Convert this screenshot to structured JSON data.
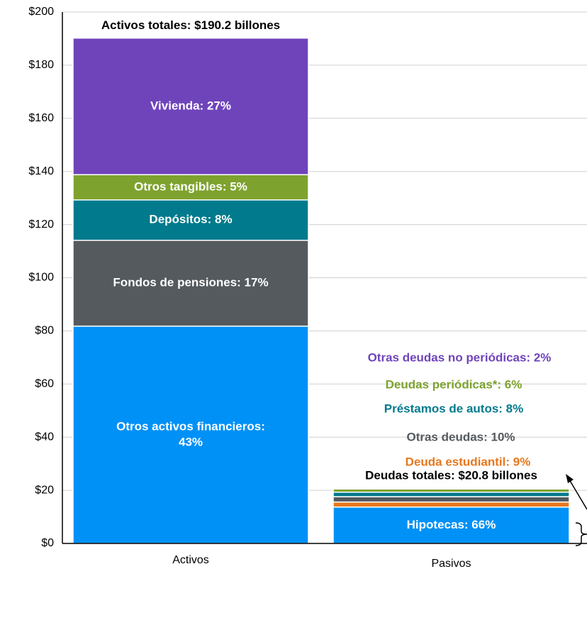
{
  "chart_data": {
    "type": "stacked_bar",
    "ylim": [
      0,
      200
    ],
    "yticks": [
      {
        "value": 0,
        "label": "$0"
      },
      {
        "value": 20,
        "label": "$20"
      },
      {
        "value": 40,
        "label": "$40"
      },
      {
        "value": 60,
        "label": "$60"
      },
      {
        "value": 80,
        "label": "$80"
      },
      {
        "value": 100,
        "label": "$100"
      },
      {
        "value": 120,
        "label": "$120"
      },
      {
        "value": 140,
        "label": "$140"
      },
      {
        "value": 160,
        "label": "$160"
      },
      {
        "value": 180,
        "label": "$180"
      },
      {
        "value": 200,
        "label": "$200"
      }
    ],
    "grid": true,
    "bars": [
      {
        "category": "Activos",
        "total_label": "Activos totales: $190.2 billones",
        "segments": [
          {
            "label": [
              "Otros activos financieros:",
              "43%"
            ],
            "value": 81.8,
            "color": "#0091f7"
          },
          {
            "label": [
              "Fondos de pensiones: 17%"
            ],
            "value": 32.3,
            "color": "#545a5e"
          },
          {
            "label": [
              "Depósitos: 8%"
            ],
            "value": 15.2,
            "color": "#007a8c"
          },
          {
            "label": [
              "Otros tangibles: 5%"
            ],
            "value": 9.5,
            "color": "#7ea22e"
          },
          {
            "label": [
              "Vivienda: 27%"
            ],
            "value": 51.4,
            "color": "#6f44bb"
          }
        ]
      },
      {
        "category": "Pasivos",
        "total_label": "Deudas totales: $20.8 billones",
        "segments": [
          {
            "label": [
              "Hipotecas: 66%"
            ],
            "value": 13.7,
            "color": "#0091f7"
          },
          {
            "label": [
              "Deuda estudiantil: 9%"
            ],
            "value": 1.9,
            "color": "#e8771c"
          },
          {
            "label": [
              "Otras deudas: 10%"
            ],
            "value": 2.0,
            "color": "#545a5e"
          },
          {
            "label": [
              "Préstamos de autos: 8%"
            ],
            "value": 1.7,
            "color": "#007a8c"
          },
          {
            "label": [
              "Deudas periódicas*: 6%"
            ],
            "value": 1.2,
            "color": "#7ea22e"
          },
          {
            "label": [
              "Otras deudas no periódicas: 2%"
            ],
            "value": 0.3,
            "color": "#6f44bb"
          }
        ]
      }
    ]
  }
}
